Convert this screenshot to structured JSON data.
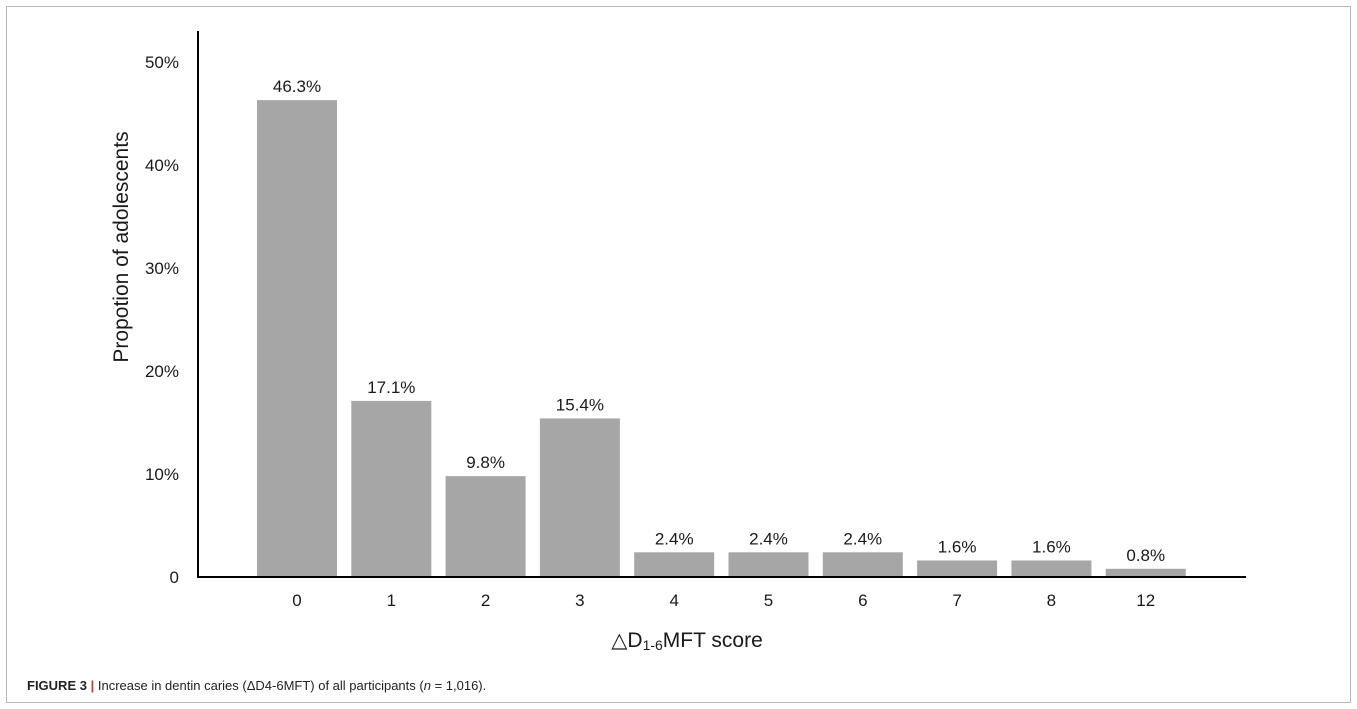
{
  "caption": {
    "label": "FIGURE 3",
    "separator": "|",
    "text_before_n": "Increase in dentin caries (ΔD4-6MFT) of all participants (",
    "n_symbol": "n",
    "text_after_n": " = 1,016)."
  },
  "chart_data": {
    "type": "bar",
    "categories": [
      "0",
      "1",
      "2",
      "3",
      "4",
      "5",
      "6",
      "7",
      "8",
      "12"
    ],
    "values": [
      46.3,
      17.1,
      9.8,
      15.4,
      2.4,
      2.4,
      2.4,
      1.6,
      1.6,
      0.8
    ],
    "data_labels": [
      "46.3%",
      "17.1%",
      "9.8%",
      "15.4%",
      "2.4%",
      "2.4%",
      "2.4%",
      "1.6%",
      "1.6%",
      "0.8%"
    ],
    "ylabel": "Propotion of adolescents",
    "xlabel": {
      "prefix": "△D",
      "subscript": "1-6",
      "suffix": "MFT score"
    },
    "ylim": [
      0,
      50
    ],
    "yticks": [
      0,
      10,
      20,
      30,
      40,
      50
    ],
    "ytick_labels": [
      "0",
      "10%",
      "20%",
      "30%",
      "40%",
      "50%"
    ],
    "grid": false,
    "bar_color": "#a6a6a6",
    "axis_color": "#000000"
  }
}
